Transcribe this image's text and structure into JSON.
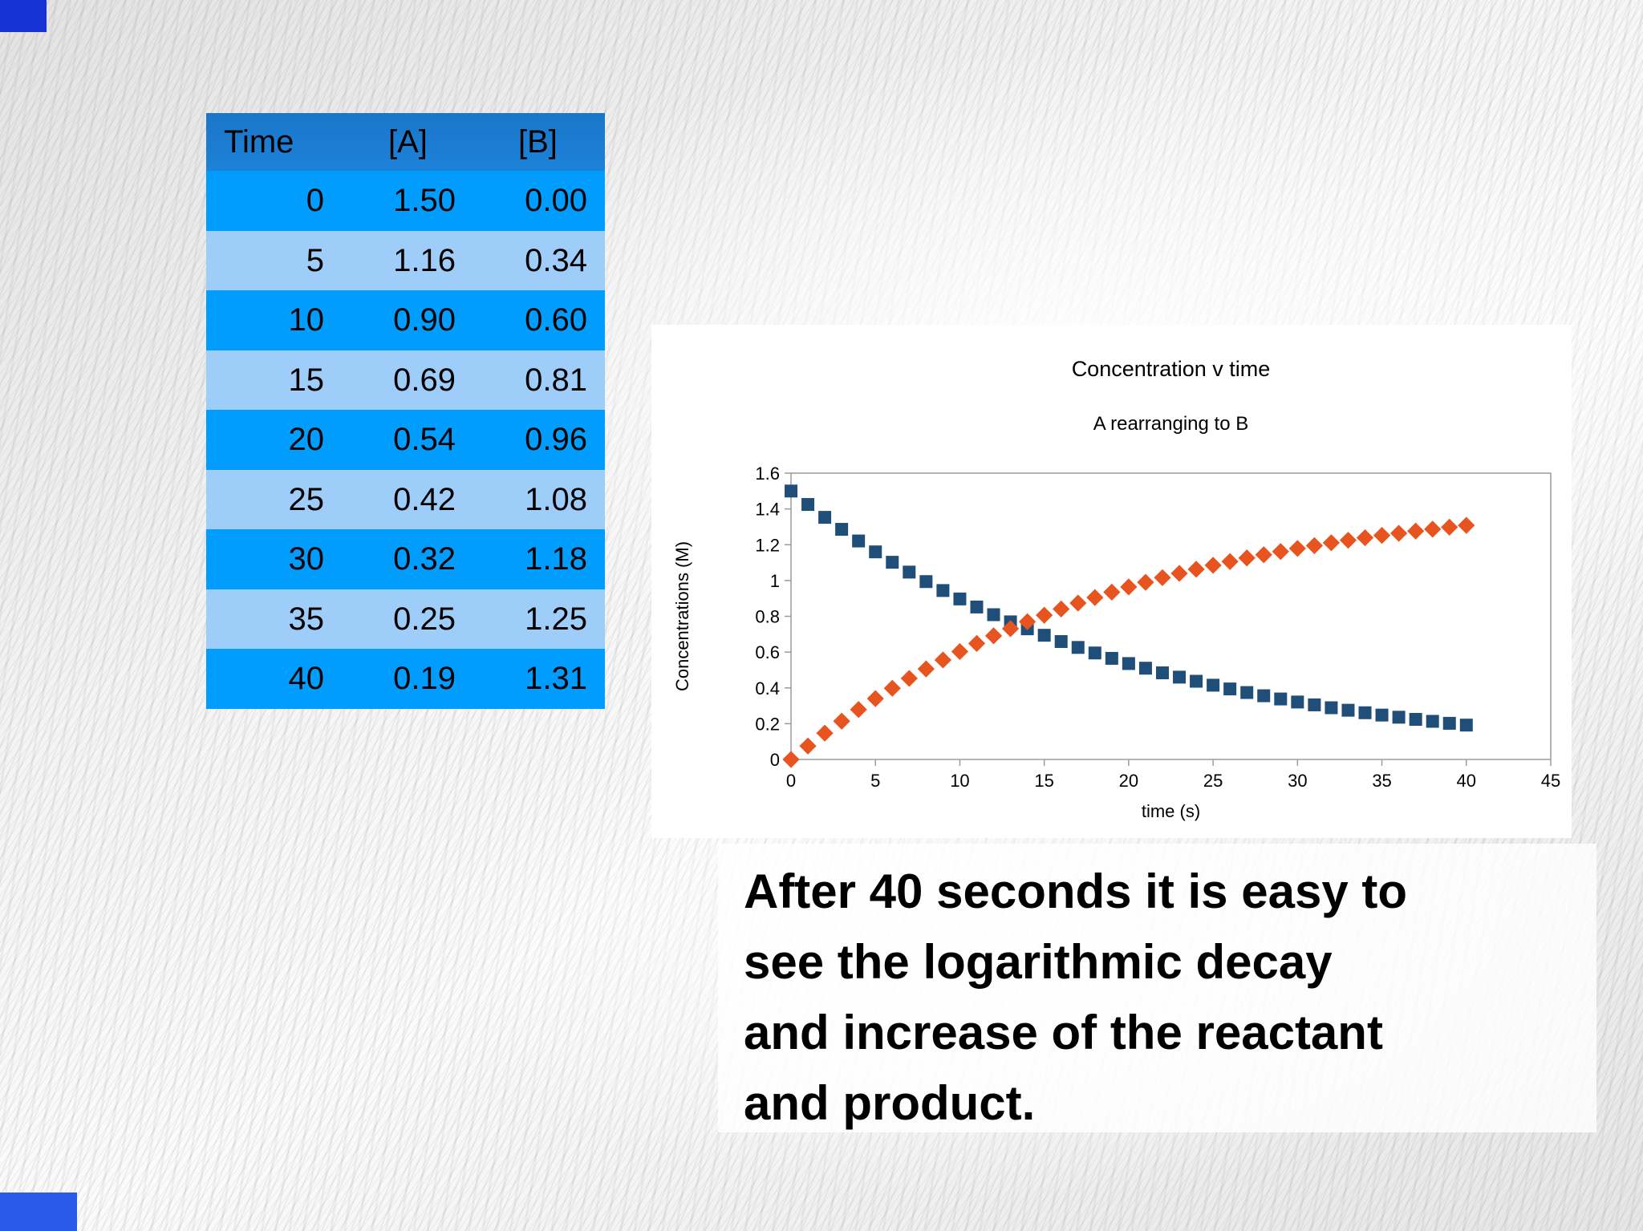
{
  "slide": {
    "corner_accent_top_color": "#1732d4",
    "corner_accent_bottom_color": "#2a5ae8"
  },
  "table": {
    "headers": [
      "Time",
      "[A]",
      "[B]"
    ],
    "rows": [
      [
        "0",
        "1.50",
        "0.00"
      ],
      [
        "5",
        "1.16",
        "0.34"
      ],
      [
        "10",
        "0.90",
        "0.60"
      ],
      [
        "15",
        "0.69",
        "0.81"
      ],
      [
        "20",
        "0.54",
        "0.96"
      ],
      [
        "25",
        "0.42",
        "1.08"
      ],
      [
        "30",
        "0.32",
        "1.18"
      ],
      [
        "35",
        "0.25",
        "1.25"
      ],
      [
        "40",
        "0.19",
        "1.31"
      ]
    ],
    "colors": {
      "header_bg": "#1c82d8",
      "row_bright": "#009dff",
      "row_light": "#9fcdf9",
      "text": "#000000"
    }
  },
  "chart_data": {
    "type": "scatter",
    "title": "Concentration v time",
    "subtitle": "A rearranging to B",
    "xlabel": "time (s)",
    "ylabel": "Concentrations (M)",
    "xlim": [
      0,
      45
    ],
    "ylim": [
      0,
      1.6
    ],
    "x_ticks": [
      0,
      5,
      10,
      15,
      20,
      25,
      30,
      35,
      40,
      45
    ],
    "y_ticks": [
      0,
      0.2,
      0.4,
      0.6,
      0.8,
      1,
      1.2,
      1.4,
      1.6
    ],
    "grid": false,
    "legend": "none",
    "axis_color": "#9c9c9c",
    "x": [
      0,
      1,
      2,
      3,
      4,
      5,
      6,
      7,
      8,
      9,
      10,
      11,
      12,
      13,
      14,
      15,
      16,
      17,
      18,
      19,
      20,
      21,
      22,
      23,
      24,
      25,
      26,
      27,
      28,
      29,
      30,
      31,
      32,
      33,
      34,
      35,
      36,
      37,
      38,
      39,
      40
    ],
    "series": [
      {
        "name": "[A]",
        "marker": "square",
        "color": "#1F4E79",
        "values": [
          1.5,
          1.425,
          1.353,
          1.286,
          1.221,
          1.16,
          1.102,
          1.047,
          0.994,
          0.944,
          0.897,
          0.852,
          0.809,
          0.769,
          0.73,
          0.694,
          0.659,
          0.626,
          0.595,
          0.565,
          0.536,
          0.51,
          0.484,
          0.46,
          0.437,
          0.415,
          0.394,
          0.374,
          0.356,
          0.338,
          0.321,
          0.305,
          0.289,
          0.275,
          0.261,
          0.248,
          0.236,
          0.224,
          0.213,
          0.202,
          0.192
        ]
      },
      {
        "name": "[B]",
        "marker": "diamond",
        "color": "#E8541F",
        "values": [
          0.0,
          0.075,
          0.147,
          0.214,
          0.279,
          0.34,
          0.398,
          0.453,
          0.506,
          0.556,
          0.603,
          0.648,
          0.691,
          0.731,
          0.77,
          0.806,
          0.841,
          0.874,
          0.905,
          0.935,
          0.964,
          0.99,
          1.016,
          1.04,
          1.063,
          1.085,
          1.106,
          1.126,
          1.144,
          1.162,
          1.179,
          1.195,
          1.211,
          1.225,
          1.239,
          1.252,
          1.264,
          1.276,
          1.287,
          1.298,
          1.308
        ]
      }
    ]
  },
  "caption": {
    "lines": [
      "After 40 seconds it is easy to",
      "see the logarithmic decay",
      "and increase of the reactant",
      "and product."
    ]
  }
}
